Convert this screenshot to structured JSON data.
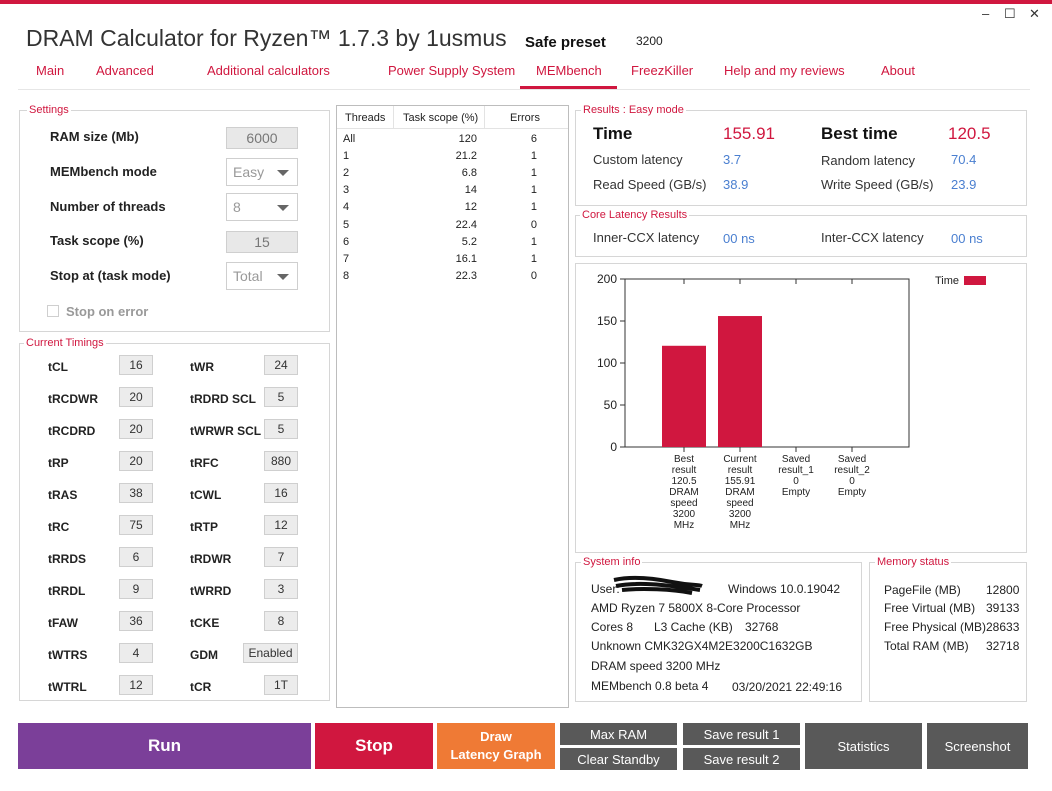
{
  "window": {
    "title": "DRAM Calculator for Ryzen™ 1.7.3 by 1usmus",
    "preset_label": "Safe preset",
    "preset_value": "3200",
    "minimize": "–",
    "maximize": "☐",
    "close": "✕"
  },
  "tabs": [
    {
      "label": "Main"
    },
    {
      "label": "Advanced"
    },
    {
      "label": "Additional calculators"
    },
    {
      "label": "Power Supply System"
    },
    {
      "label": "MEMbench"
    },
    {
      "label": "FreezKiller"
    },
    {
      "label": "Help and my reviews"
    },
    {
      "label": "About"
    }
  ],
  "active_tab": "MEMbench",
  "settings": {
    "title": "Settings",
    "ram_size_label": "RAM size (Mb)",
    "ram_size_value": "6000",
    "mode_label": "MEMbench mode",
    "mode_value": "Easy",
    "threads_label": "Number of threads",
    "threads_value": "8",
    "task_scope_label": "Task scope (%)",
    "task_scope_value": "15",
    "stop_at_label": "Stop at (task mode)",
    "stop_at_value": "Total",
    "stop_on_error_label": "Stop on error",
    "stop_on_error_checked": false
  },
  "timings": {
    "title": "Current Timings",
    "left": [
      {
        "label": "tCL",
        "value": "16"
      },
      {
        "label": "tRCDWR",
        "value": "20"
      },
      {
        "label": "tRCDRD",
        "value": "20"
      },
      {
        "label": "tRP",
        "value": "20"
      },
      {
        "label": "tRAS",
        "value": "38"
      },
      {
        "label": "tRC",
        "value": "75"
      },
      {
        "label": "tRRDS",
        "value": "6"
      },
      {
        "label": "tRRDL",
        "value": "9"
      },
      {
        "label": "tFAW",
        "value": "36"
      },
      {
        "label": "tWTRS",
        "value": "4"
      },
      {
        "label": "tWTRL",
        "value": "12"
      }
    ],
    "right": [
      {
        "label": "tWR",
        "value": "24"
      },
      {
        "label": "tRDRD SCL",
        "value": "5"
      },
      {
        "label": "tWRWR SCL",
        "value": "5"
      },
      {
        "label": "tRFC",
        "value": "880"
      },
      {
        "label": "tCWL",
        "value": "16"
      },
      {
        "label": "tRTP",
        "value": "12"
      },
      {
        "label": "tRDWR",
        "value": "7"
      },
      {
        "label": "tWRRD",
        "value": "3"
      },
      {
        "label": "tCKE",
        "value": "8"
      },
      {
        "label": "GDM",
        "value": "Enabled"
      },
      {
        "label": "tCR",
        "value": "1T"
      }
    ]
  },
  "threads_table": {
    "headers": [
      "Threads",
      "Task scope (%)",
      "Errors"
    ],
    "rows": [
      [
        "All",
        "120",
        "6"
      ],
      [
        "1",
        "21.2",
        "1"
      ],
      [
        "2",
        "6.8",
        "1"
      ],
      [
        "3",
        "14",
        "1"
      ],
      [
        "4",
        "12",
        "1"
      ],
      [
        "5",
        "22.4",
        "0"
      ],
      [
        "6",
        "5.2",
        "1"
      ],
      [
        "7",
        "16.1",
        "1"
      ],
      [
        "8",
        "22.3",
        "0"
      ]
    ]
  },
  "results": {
    "title": "Results : Easy mode",
    "time_label": "Time",
    "time_value": "155.91",
    "best_time_label": "Best time",
    "best_time_value": "120.5",
    "custom_latency_label": "Custom latency",
    "custom_latency_value": "3.7",
    "random_latency_label": "Random latency",
    "random_latency_value": "70.4",
    "read_speed_label": "Read Speed (GB/s)",
    "read_speed_value": "38.9",
    "write_speed_label": "Write Speed (GB/s)",
    "write_speed_value": "23.9"
  },
  "core_latency": {
    "title": "Core Latency Results",
    "inner_label": "Inner-CCX latency",
    "inner_value": "00 ns",
    "inter_label": "Inter-CCX latency",
    "inter_value": "00 ns"
  },
  "chart_data": {
    "type": "bar",
    "categories": [
      [
        "Best",
        "result",
        "120.5",
        "DRAM",
        "speed",
        "3200",
        "MHz"
      ],
      [
        "Current",
        "result",
        "155.91",
        "DRAM",
        "speed",
        "3200",
        "MHz"
      ],
      [
        "Saved",
        "result_1",
        "0",
        "Empty"
      ],
      [
        "Saved",
        "result_2",
        "0",
        "Empty"
      ]
    ],
    "values": [
      120.5,
      155.91,
      0,
      0
    ],
    "legend": "Time",
    "legend_position": "top-right",
    "ylim": [
      0,
      200
    ],
    "yticks": [
      "0",
      "50",
      "100",
      "150",
      "200"
    ],
    "grid": false,
    "bar_color": "#d0173f"
  },
  "system_info": {
    "title": "System info",
    "user_label": "User:",
    "os": "Windows 10.0.19042",
    "cpu": "AMD Ryzen 7 5800X 8-Core Processor",
    "cores": "Cores 8",
    "l3_cache_label": "L3 Cache (KB)",
    "l3_cache_value": "32768",
    "memory": "Unknown CMK32GX4M2E3200C1632GB",
    "dram_speed": "DRAM speed 3200 MHz",
    "membench_version": "MEMbench 0.8 beta 4",
    "datetime": "03/20/2021 22:49:16"
  },
  "memory_status": {
    "title": "Memory status",
    "rows": [
      {
        "label": "PageFile (MB)",
        "value": "12800"
      },
      {
        "label": "Free Virtual (MB)",
        "value": "39133"
      },
      {
        "label": "Free Physical (MB)",
        "value": "28633"
      },
      {
        "label": "Total RAM (MB)",
        "value": "32718"
      }
    ]
  },
  "buttons": {
    "run": "Run",
    "stop": "Stop",
    "draw_line1": "Draw",
    "draw_line2": "Latency Graph",
    "max_ram": "Max RAM",
    "clear_standby": "Clear Standby",
    "save1": "Save result 1",
    "save2": "Save result 2",
    "statistics": "Statistics",
    "screenshot": "Screenshot"
  },
  "colors": {
    "accent": "#d0173f",
    "run": "#7b3f99",
    "stop": "#d0173f",
    "draw": "#ef7a35",
    "dark_button": "#595959",
    "value_blue": "#4a7fd0"
  }
}
